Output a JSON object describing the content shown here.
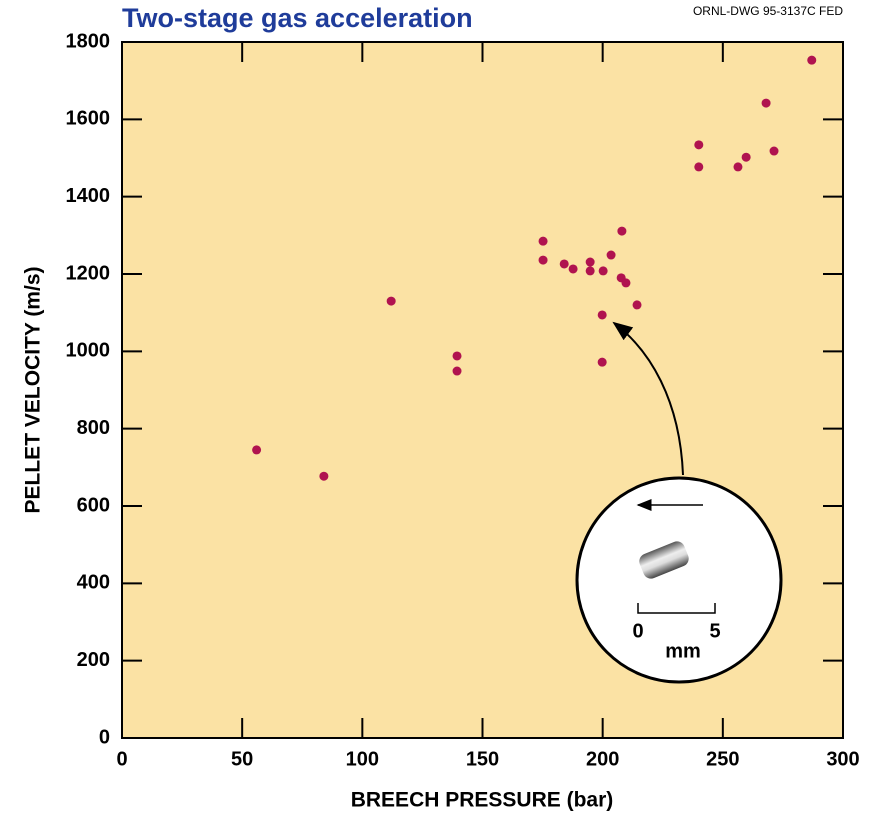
{
  "chart_data": {
    "type": "scatter",
    "title": "Two-stage gas acceleration",
    "drawing_number": "ORNL-DWG 95-3137C FED",
    "x_label": "BREECH PRESSURE (bar)",
    "y_label": "PELLET VELOCITY (m/s)",
    "x": [
      56,
      84,
      112,
      139.4,
      139.4,
      175.2,
      175.2,
      184,
      187.7,
      194.8,
      194.8,
      200.2,
      203.5,
      208,
      207.7,
      209.7,
      199.8,
      199.8,
      214.3,
      240,
      240,
      256.3,
      259.7,
      268,
      271.3,
      287
    ],
    "values": [
      745,
      677,
      1130,
      988,
      949,
      1285,
      1236,
      1226,
      1213,
      1231,
      1208,
      1208,
      1249,
      1311,
      1190,
      1177,
      1094,
      972,
      1120,
      1534,
      1477,
      1477,
      1502,
      1642,
      1518,
      1753
    ],
    "color": "#b0134f",
    "plot_background": "#fbe2a4",
    "xlim": [
      0,
      300
    ],
    "xticks": [
      0,
      50,
      100,
      150,
      200,
      250,
      300
    ],
    "ylim": [
      0,
      1800
    ],
    "yticks": [
      0,
      200,
      400,
      600,
      800,
      1000,
      1200,
      1400,
      1600,
      1800
    ],
    "inset_labels": [
      "0",
      "5",
      "mm"
    ]
  }
}
